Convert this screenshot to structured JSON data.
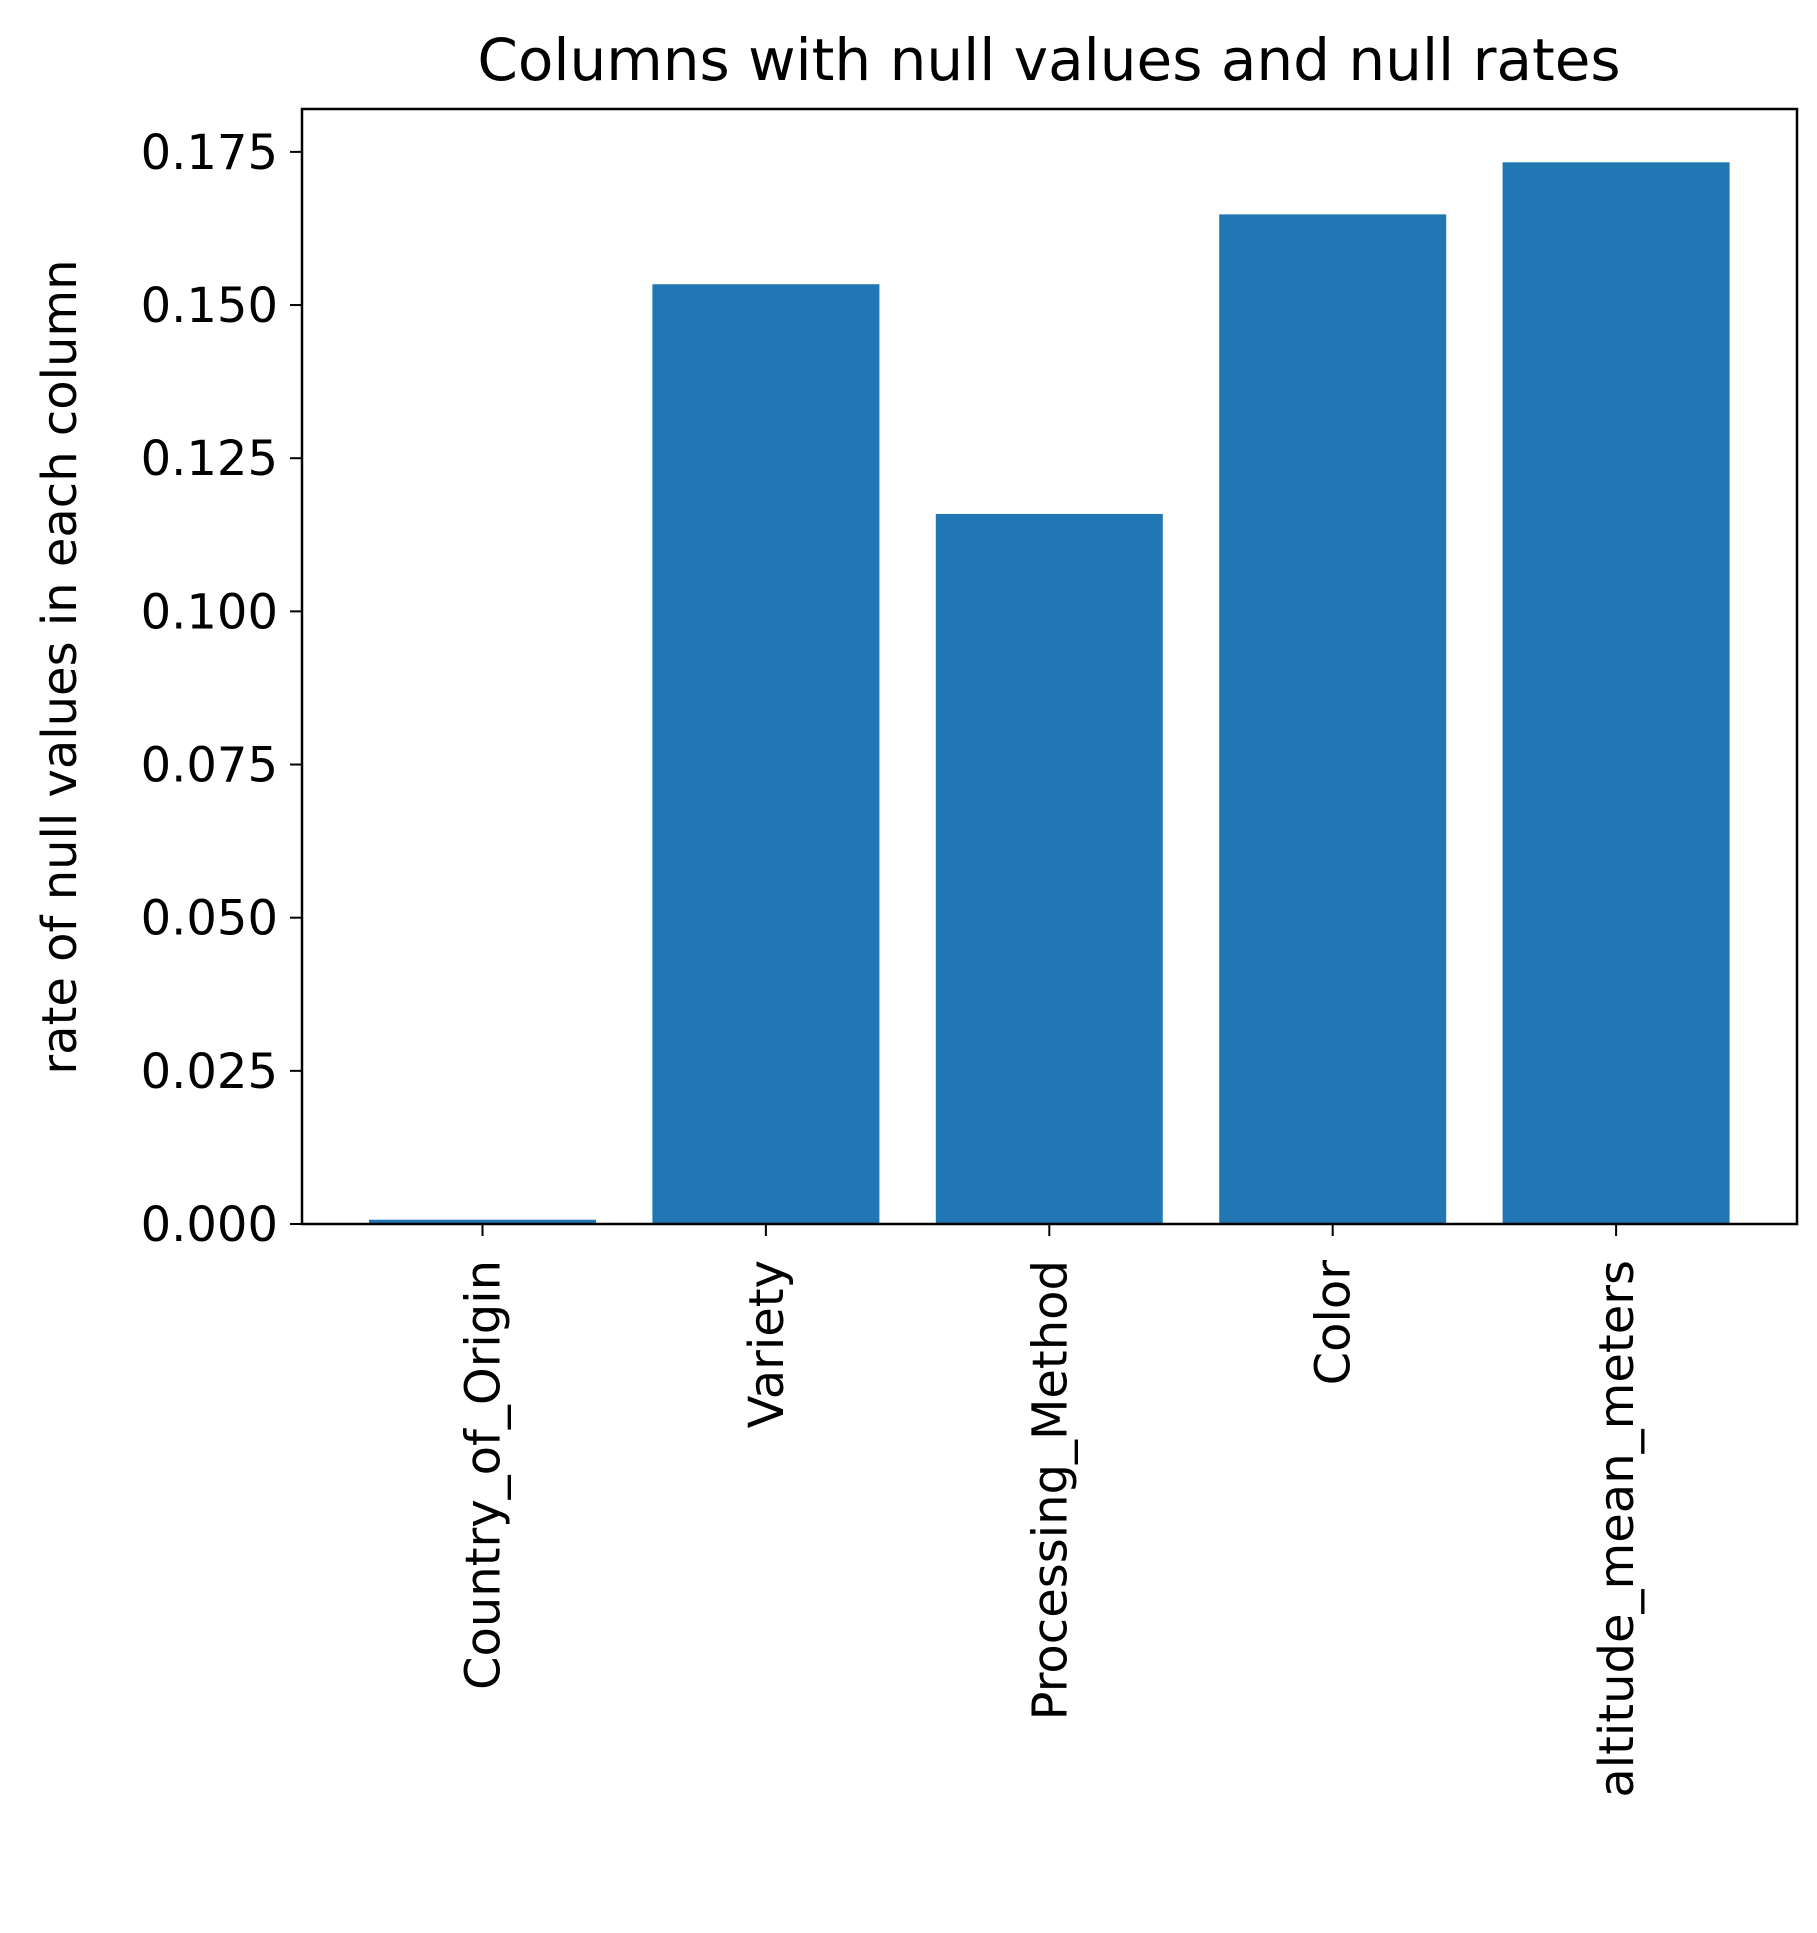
{
  "chart_data": {
    "type": "bar",
    "title": "Columns with null values and null rates",
    "xlabel": "",
    "ylabel": "rate of null values in each column",
    "categories": [
      "Country_of_Origin",
      "Variety",
      "Processing_Method",
      "Color",
      "altitude_mean_meters"
    ],
    "values": [
      0.0007,
      0.1534,
      0.1159,
      0.1648,
      0.1733
    ],
    "ylim": [
      0,
      0.182
    ],
    "yticks": [
      "0.000",
      "0.025",
      "0.050",
      "0.075",
      "0.100",
      "0.125",
      "0.150",
      "0.175"
    ],
    "grid": false,
    "legend": "none",
    "bar_color": "#2077b4",
    "axis_color": "#000000"
  }
}
